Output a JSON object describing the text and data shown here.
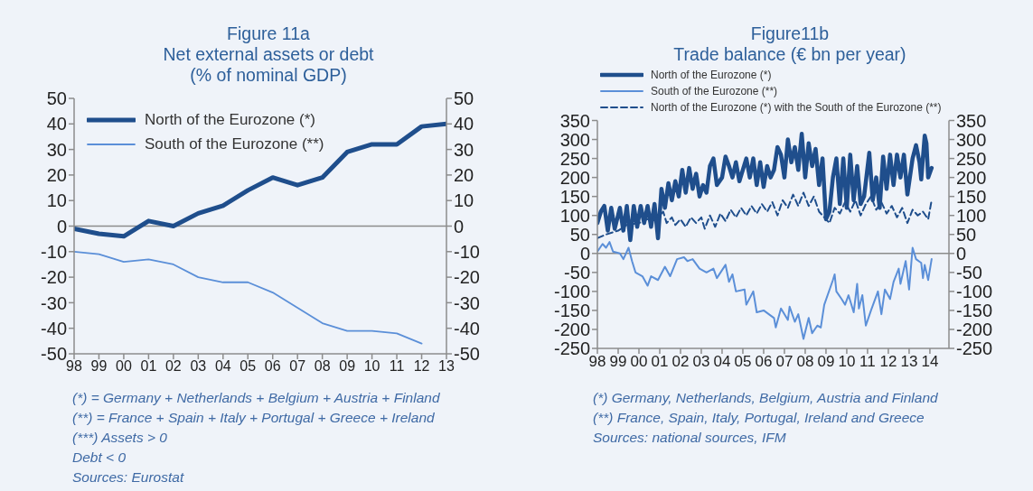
{
  "chart_data": [
    {
      "type": "line",
      "title": "Figure 11a",
      "subtitle": "Net external assets or debt\n(% of nominal GDP)",
      "categories": [
        "98",
        "99",
        "00",
        "01",
        "02",
        "03",
        "04",
        "05",
        "06",
        "07",
        "08",
        "09",
        "10",
        "11",
        "12",
        "13"
      ],
      "series": [
        {
          "name": "North of the Eurozone (*)",
          "color": "#1f4e8c",
          "values": [
            -1,
            -3,
            -4,
            2,
            0,
            5,
            8,
            14,
            19,
            16,
            19,
            29,
            32,
            32,
            39,
            40
          ]
        },
        {
          "name": "South of the Eurozone (**)",
          "color": "#5b8fd8",
          "values": [
            -10,
            -11,
            -14,
            -13,
            -15,
            -20,
            -22,
            -22,
            -26,
            -32,
            -38,
            -41,
            -41,
            -42,
            -46,
            null
          ]
        }
      ],
      "ylim": [
        -50,
        50
      ],
      "yticks": [
        -50,
        -40,
        -30,
        -20,
        -10,
        0,
        10,
        20,
        30,
        40,
        50
      ],
      "y2lim": [
        -50,
        50
      ],
      "y2ticks": [
        -50,
        -40,
        -30,
        -20,
        -10,
        0,
        10,
        20,
        30,
        40,
        50
      ],
      "ref_lines": [
        {
          "axis": "y",
          "value": 0,
          "color": "#8c8c8c"
        }
      ],
      "legend": "top left",
      "annotations": [
        "(*) = Germany + Netherlands + Belgium + Austria + Finland",
        "(**) = France + Spain + Italy + Portugal + Greece + Ireland",
        "(***) Assets > 0",
        "Debt < 0",
        "Sources: Eurostat"
      ]
    },
    {
      "type": "line",
      "title": "Figure11b",
      "subtitle": "Trade balance (€ bn per year)",
      "xlim": [
        "1998-01",
        "2014-12"
      ],
      "xticks": [
        {
          "value": "1998-01",
          "label": "98"
        },
        {
          "value": "1999-01",
          "label": "99"
        },
        {
          "value": "2000-01",
          "label": "00"
        },
        {
          "value": "2001-01",
          "label": "01"
        },
        {
          "value": "2002-01",
          "label": "02"
        },
        {
          "value": "2003-01",
          "label": "03"
        },
        {
          "value": "2004-01",
          "label": "04"
        },
        {
          "value": "2005-01",
          "label": "05"
        },
        {
          "value": "2006-01",
          "label": "06"
        },
        {
          "value": "2007-01",
          "label": "07"
        },
        {
          "value": "2008-01",
          "label": "08"
        },
        {
          "value": "2009-01",
          "label": "09"
        },
        {
          "value": "2010-01",
          "label": "10"
        },
        {
          "value": "2011-01",
          "label": "11"
        },
        {
          "value": "2012-01",
          "label": "12"
        },
        {
          "value": "2013-01",
          "label": "13"
        },
        {
          "value": "2014-01",
          "label": "14"
        }
      ],
      "series": [
        {
          "name": "North of the Eurozone (*)",
          "color": "#1f4e8c",
          "x": [
            "1998-01",
            "1998-03",
            "1998-05",
            "1998-07",
            "1998-09",
            "1998-11",
            "1999-02",
            "1999-04",
            "1999-06",
            "1999-08",
            "1999-10",
            "1999-12",
            "2000-02",
            "2000-04",
            "2000-06",
            "2000-08",
            "2000-10",
            "2000-12",
            "2001-02",
            "2001-04",
            "2001-06",
            "2001-08",
            "2001-10",
            "2001-12",
            "2002-02",
            "2002-04",
            "2002-06",
            "2002-08",
            "2002-10",
            "2002-12",
            "2003-02",
            "2003-04",
            "2003-06",
            "2003-08",
            "2003-10",
            "2004-01",
            "2004-03",
            "2004-05",
            "2004-07",
            "2004-09",
            "2004-11",
            "2005-01",
            "2005-03",
            "2005-05",
            "2005-07",
            "2005-09",
            "2005-11",
            "2006-01",
            "2006-03",
            "2006-05",
            "2006-07",
            "2006-09",
            "2006-11",
            "2007-01",
            "2007-03",
            "2007-05",
            "2007-07",
            "2007-09",
            "2007-11",
            "2008-01",
            "2008-03",
            "2008-05",
            "2008-07",
            "2008-09",
            "2008-11",
            "2009-01",
            "2009-03",
            "2009-05",
            "2009-07",
            "2009-09",
            "2009-11",
            "2010-01",
            "2010-03",
            "2010-05",
            "2010-07",
            "2010-09",
            "2010-11",
            "2011-02",
            "2011-04",
            "2011-06",
            "2011-08",
            "2011-10",
            "2011-12",
            "2012-02",
            "2012-04",
            "2012-06",
            "2012-08",
            "2012-10",
            "2012-12",
            "2013-03",
            "2013-05",
            "2013-07",
            "2013-08",
            "2013-10",
            "2013-11",
            "2013-12",
            "2014-02"
          ],
          "values": [
            80,
            110,
            125,
            60,
            120,
            65,
            120,
            60,
            125,
            35,
            125,
            70,
            125,
            80,
            125,
            70,
            130,
            40,
            170,
            120,
            185,
            140,
            190,
            150,
            220,
            160,
            225,
            170,
            210,
            150,
            180,
            160,
            230,
            250,
            180,
            200,
            255,
            230,
            200,
            240,
            190,
            220,
            250,
            200,
            250,
            180,
            240,
            175,
            230,
            200,
            220,
            280,
            260,
            200,
            300,
            240,
            280,
            220,
            315,
            200,
            290,
            230,
            275,
            180,
            250,
            90,
            110,
            200,
            250,
            130,
            250,
            120,
            260,
            140,
            230,
            130,
            150,
            265,
            140,
            200,
            120,
            255,
            170,
            260,
            180,
            260,
            200,
            260,
            155,
            250,
            285,
            240,
            195,
            310,
            290,
            200,
            225
          ]
        },
        {
          "name": "South of the Eurozone (**)",
          "color": "#5b8fd8",
          "x": [
            "1998-01",
            "1998-04",
            "1998-06",
            "1998-08",
            "1998-10",
            "1999-02",
            "1999-04",
            "1999-07",
            "1999-09",
            "1999-11",
            "2000-03",
            "2000-06",
            "2000-08",
            "2000-12",
            "2001-04",
            "2001-07",
            "2001-11",
            "2002-03",
            "2002-05",
            "2002-08",
            "2002-12",
            "2003-04",
            "2003-08",
            "2003-10",
            "2004-03",
            "2004-05",
            "2004-07",
            "2004-09",
            "2005-02",
            "2005-03",
            "2005-07",
            "2005-09",
            "2006-01",
            "2006-07",
            "2006-08",
            "2006-11",
            "2007-03",
            "2007-04",
            "2007-07",
            "2007-09",
            "2007-12",
            "2008-03",
            "2008-05",
            "2008-08",
            "2008-10",
            "2008-12",
            "2009-05",
            "2009-06",
            "2009-07",
            "2009-10",
            "2009-12",
            "2010-02",
            "2010-05",
            "2010-07",
            "2010-08",
            "2010-10",
            "2010-12",
            "2011-03",
            "2011-07",
            "2011-09",
            "2011-11",
            "2012-02",
            "2012-04",
            "2012-07",
            "2012-08",
            "2012-11",
            "2013-01",
            "2013-03",
            "2013-05",
            "2013-08",
            "2013-09",
            "2013-10",
            "2013-12",
            "2014-02"
          ],
          "values": [
            5,
            25,
            15,
            30,
            5,
            0,
            -15,
            15,
            -20,
            -50,
            -60,
            -85,
            -60,
            -70,
            -35,
            -60,
            -15,
            -10,
            -20,
            -15,
            -40,
            -50,
            -40,
            -65,
            -30,
            -75,
            -55,
            -100,
            -95,
            -135,
            -100,
            -155,
            -150,
            -170,
            -195,
            -145,
            -175,
            -140,
            -180,
            -160,
            -225,
            -170,
            -210,
            -190,
            -195,
            -135,
            -70,
            -55,
            -100,
            -120,
            -135,
            -110,
            -155,
            -80,
            -145,
            -110,
            -190,
            -150,
            -100,
            -160,
            -95,
            -120,
            -75,
            -40,
            -80,
            -20,
            -95,
            15,
            -15,
            -25,
            -65,
            -30,
            -70,
            -15
          ]
        },
        {
          "name": "North of the Eurozone (*) with the South of the Eurozone (**)",
          "color": "#1f4e8c",
          "line_style": "dashed",
          "x": [
            "1998-01",
            "1998-06",
            "1999-01",
            "1999-06",
            "2000-01",
            "2000-06",
            "2001-01",
            "2001-03",
            "2001-05",
            "2001-08",
            "2001-10",
            "2002-01",
            "2002-04",
            "2002-07",
            "2002-10",
            "2003-01",
            "2003-03",
            "2003-06",
            "2003-09",
            "2003-12",
            "2004-03",
            "2004-06",
            "2004-09",
            "2004-12",
            "2005-03",
            "2005-06",
            "2005-09",
            "2005-12",
            "2006-03",
            "2006-06",
            "2006-09",
            "2006-12",
            "2007-03",
            "2007-06",
            "2007-09",
            "2007-12",
            "2008-03",
            "2008-06",
            "2008-09",
            "2008-12",
            "2009-03",
            "2009-06",
            "2009-09",
            "2009-12",
            "2010-03",
            "2010-06",
            "2010-09",
            "2010-12",
            "2011-03",
            "2011-06",
            "2011-09",
            "2011-12",
            "2012-03",
            "2012-06",
            "2012-09",
            "2012-12",
            "2013-03",
            "2013-06",
            "2013-09",
            "2013-12",
            "2014-02"
          ],
          "values": [
            40,
            50,
            60,
            75,
            80,
            90,
            100,
            110,
            80,
            95,
            75,
            90,
            70,
            95,
            80,
            95,
            65,
            100,
            70,
            105,
            85,
            115,
            95,
            120,
            100,
            125,
            105,
            130,
            110,
            135,
            100,
            140,
            120,
            155,
            125,
            160,
            125,
            150,
            110,
            95,
            80,
            120,
            105,
            135,
            110,
            140,
            100,
            130,
            150,
            115,
            135,
            105,
            125,
            95,
            120,
            80,
            115,
            100,
            110,
            90,
            140
          ]
        }
      ],
      "ylim": [
        -250,
        350
      ],
      "yticks": [
        -250,
        -200,
        -150,
        -100,
        -50,
        0,
        50,
        100,
        150,
        200,
        250,
        300,
        350
      ],
      "y2lim": [
        -250,
        350
      ],
      "y2ticks": [
        -250,
        -200,
        -150,
        -100,
        -50,
        0,
        50,
        100,
        150,
        200,
        250,
        300,
        350
      ],
      "ref_lines": [
        {
          "axis": "y",
          "value": 0,
          "color": "#8c8c8c"
        }
      ],
      "legend": "top",
      "annotations": [
        "(*) Germany, Netherlands, Belgium, Austria and Finland",
        "(**) France, Spain, Italy, Portugal, Ireland and Greece",
        "Sources: national sources, IFM"
      ]
    }
  ]
}
